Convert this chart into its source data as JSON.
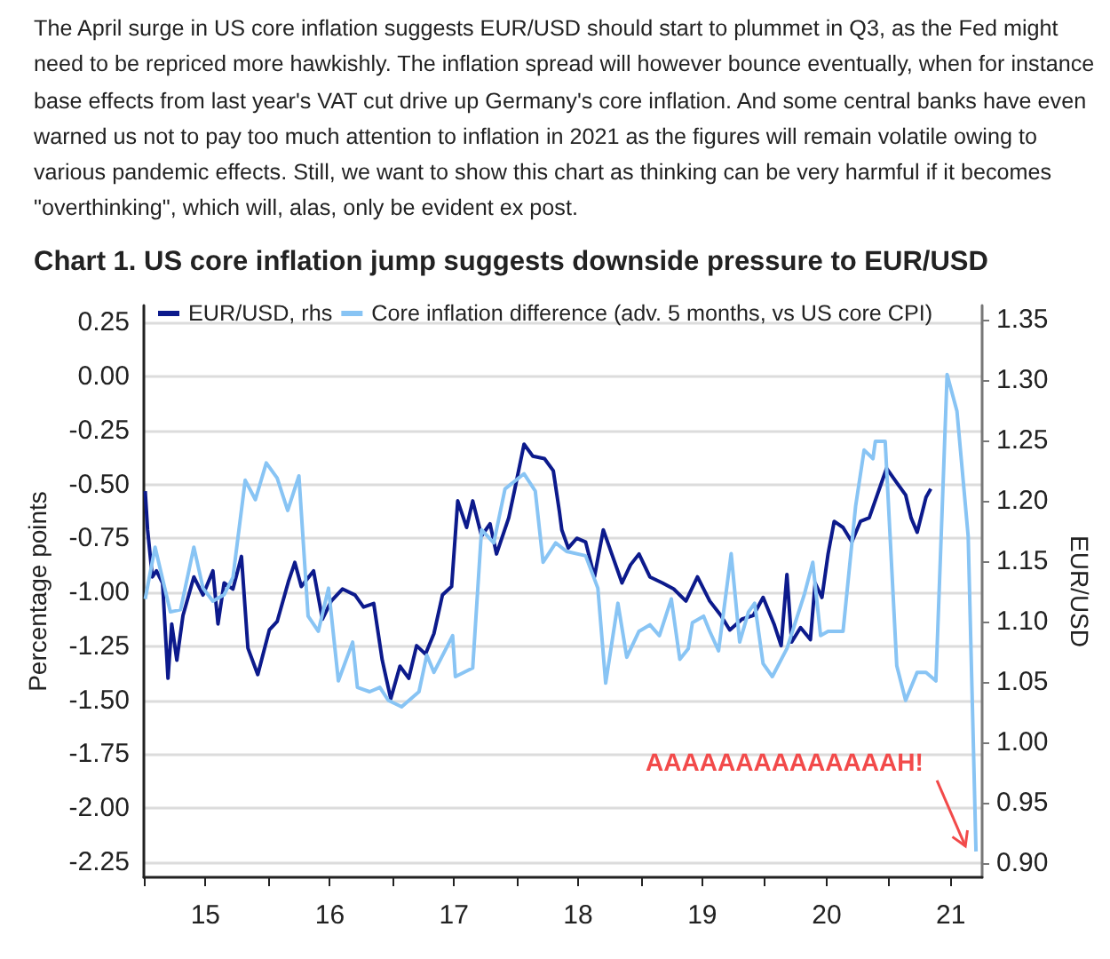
{
  "chart_data": {
    "type": "line",
    "title": "Chart 1. US core inflation jump suggests downside pressure to EUR/USD",
    "annotations": [
      "The April surge in US core inflation suggests EUR/USD should start to plummet in Q3, as the Fed might need to be repriced more hawkishly. The inflation spread will however bounce eventually, when for instance base effects from last year's VAT cut drive up Germany's core inflation. And some central banks have even warned us not to pay too much attention to inflation in 2021 as the figures will remain volatile owing to various pandemic effects. Still, we want to show this chart as thinking can be very harmful if it becomes \"overthinking\", which will, alas, only be evident ex post.",
      {
        "text": "AAAAAAAAAAAAAAH!",
        "x": "2021-09-13",
        "y": -2.2
      }
    ],
    "ylabel": "Percentage points",
    "y2label": "EUR/USD",
    "xlim": [
      "2015-01-01",
      "2021-10-01"
    ],
    "xticks": [
      {
        "value": "2015",
        "label": null
      },
      {
        "value": "2015-07",
        "label": "15"
      },
      {
        "value": "2016",
        "label": null
      },
      {
        "value": "2016-07",
        "label": "16"
      },
      {
        "value": "2017",
        "label": null
      },
      {
        "value": "2017-07",
        "label": "17"
      },
      {
        "value": "2018",
        "label": null
      },
      {
        "value": "2018-07",
        "label": "18"
      },
      {
        "value": "2019",
        "label": null
      },
      {
        "value": "2019-07",
        "label": "19"
      },
      {
        "value": "2020",
        "label": null
      },
      {
        "value": "2020-07",
        "label": "20"
      },
      {
        "value": "2021",
        "label": null
      },
      {
        "value": "2021-07",
        "label": "21"
      }
    ],
    "ylim": [
      -2.32,
      0.33
    ],
    "yticks": [
      {
        "value": 0.25,
        "label": "0.25"
      },
      {
        "value": 0,
        "label": "0.00"
      },
      {
        "value": -0.25,
        "label": "-0.25"
      },
      {
        "value": -0.5,
        "label": "-0.50"
      },
      {
        "value": -0.75,
        "label": "-0.75"
      },
      {
        "value": -1,
        "label": "-1.00"
      },
      {
        "value": -1.25,
        "label": "-1.25"
      },
      {
        "value": -1.5,
        "label": "-1.50"
      },
      {
        "value": -1.75,
        "label": "-1.75"
      },
      {
        "value": -2,
        "label": "-2.00"
      },
      {
        "value": -2.25,
        "label": "-2.25"
      }
    ],
    "y2lim": [
      0.888,
      1.362
    ],
    "y2ticks": [
      {
        "value": 1.35,
        "label": "1.35"
      },
      {
        "value": 1.3,
        "label": "1.30"
      },
      {
        "value": 1.25,
        "label": "1.25"
      },
      {
        "value": 1.2,
        "label": "1.20"
      },
      {
        "value": 1.15,
        "label": "1.15"
      },
      {
        "value": 1.1,
        "label": "1.10"
      },
      {
        "value": 1.05,
        "label": "1.05"
      },
      {
        "value": 1,
        "label": "1.00"
      },
      {
        "value": 0.95,
        "label": "0.95"
      },
      {
        "value": 0.9,
        "label": "0.90"
      }
    ],
    "grid": "y",
    "legend": "top left",
    "marker": "none",
    "line_style": "solid",
    "series": [
      {
        "name": "EUR/USD, rhs",
        "color": "#0c1a8c",
        "axis": "y2",
        "x": [
          "2015-01-05",
          "2015-01-12",
          "2015-01-26",
          "2015-02-07",
          "2015-02-25",
          "2015-03-13",
          "2015-03-24",
          "2015-04-08",
          "2015-04-26",
          "2015-05-28",
          "2015-06-24",
          "2015-07-23",
          "2015-08-07",
          "2015-08-25",
          "2015-09-20",
          "2015-10-15",
          "2015-11-03",
          "2015-12-02",
          "2016-01-05",
          "2016-01-28",
          "2016-03-02",
          "2016-03-20",
          "2016-04-08",
          "2016-05-14",
          "2016-06-09",
          "2016-07-05",
          "2016-08-07",
          "2016-09-13",
          "2016-10-08",
          "2016-11-07",
          "2016-12-02",
          "2016-12-27",
          "2017-01-23",
          "2017-02-18",
          "2017-03-13",
          "2017-04-08",
          "2017-05-03",
          "2017-05-28",
          "2017-06-24",
          "2017-07-12",
          "2017-08-07",
          "2017-08-25",
          "2017-09-20",
          "2017-10-15",
          "2017-11-03",
          "2017-12-09",
          "2017-12-27",
          "2018-01-23",
          "2018-02-18",
          "2018-03-24",
          "2018-04-19",
          "2018-05-07",
          "2018-05-14",
          "2018-06-02",
          "2018-06-27",
          "2018-07-23",
          "2018-08-18",
          "2018-09-13",
          "2018-10-08",
          "2018-11-07",
          "2018-12-02",
          "2018-12-27",
          "2019-01-28",
          "2019-03-06",
          "2019-04-08",
          "2019-05-14",
          "2019-06-17",
          "2019-07-23",
          "2019-08-25",
          "2019-09-20",
          "2019-10-26",
          "2019-11-28",
          "2019-12-27",
          "2020-01-28",
          "2020-02-18",
          "2020-03-06",
          "2020-03-20",
          "2020-04-15",
          "2020-05-14",
          "2020-05-28",
          "2020-06-17",
          "2020-07-05",
          "2020-07-23",
          "2020-08-18",
          "2020-09-13",
          "2020-10-08",
          "2020-11-03",
          "2020-12-09",
          "2020-12-24",
          "2021-01-23",
          "2021-02-18",
          "2021-03-06",
          "2021-03-24",
          "2021-04-19",
          "2021-05-03"
        ],
        "values": [
          1.208,
          1.176,
          1.137,
          1.142,
          1.132,
          1.053,
          1.098,
          1.068,
          1.105,
          1.137,
          1.122,
          1.142,
          1.098,
          1.132,
          1.127,
          1.154,
          1.078,
          1.056,
          1.093,
          1.1,
          1.134,
          1.149,
          1.129,
          1.142,
          1.102,
          1.117,
          1.127,
          1.122,
          1.112,
          1.115,
          1.068,
          1.036,
          1.063,
          1.053,
          1.08,
          1.073,
          1.09,
          1.122,
          1.129,
          1.2,
          1.178,
          1.2,
          1.171,
          1.181,
          1.156,
          1.186,
          1.21,
          1.247,
          1.237,
          1.235,
          1.225,
          1.191,
          1.176,
          1.161,
          1.169,
          1.166,
          1.137,
          1.176,
          1.156,
          1.132,
          1.147,
          1.156,
          1.137,
          1.132,
          1.127,
          1.117,
          1.137,
          1.117,
          1.105,
          1.093,
          1.102,
          1.105,
          1.12,
          1.098,
          1.08,
          1.139,
          1.083,
          1.095,
          1.085,
          1.132,
          1.12,
          1.156,
          1.183,
          1.178,
          1.166,
          1.183,
          1.186,
          1.215,
          1.227,
          1.215,
          1.205,
          1.186,
          1.174,
          1.203,
          1.21
        ]
      },
      {
        "name": "Core inflation difference (adv. 5 months, vs US core CPI)",
        "color": "#88c4f4",
        "x": [
          "2015-01-05",
          "2015-02-03",
          "2015-03-20",
          "2015-04-19",
          "2015-05-28",
          "2015-06-24",
          "2015-07-23",
          "2015-08-25",
          "2015-09-20",
          "2015-10-26",
          "2015-11-25",
          "2015-12-27",
          "2016-01-28",
          "2016-02-28",
          "2016-04-01",
          "2016-04-28",
          "2016-05-28",
          "2016-06-27",
          "2016-07-26",
          "2016-09-06",
          "2016-09-20",
          "2016-10-26",
          "2016-11-25",
          "2016-12-20",
          "2017-01-28",
          "2017-03-20",
          "2017-04-12",
          "2017-05-03",
          "2017-06-27",
          "2017-07-05",
          "2017-08-25",
          "2017-09-20",
          "2017-10-26",
          "2017-11-28",
          "2018-01-23",
          "2018-02-25",
          "2018-03-20",
          "2018-04-26",
          "2018-05-28",
          "2018-07-23",
          "2018-08-28",
          "2018-09-20",
          "2018-10-26",
          "2018-11-21",
          "2018-12-27",
          "2019-01-28",
          "2019-02-25",
          "2019-04-01",
          "2019-04-26",
          "2019-05-21",
          "2019-06-02",
          "2019-07-05",
          "2019-07-23",
          "2019-08-18",
          "2019-09-24",
          "2019-10-19",
          "2019-11-14",
          "2019-12-02",
          "2019-12-27",
          "2020-01-23",
          "2020-03-06",
          "2020-04-26",
          "2020-05-21",
          "2020-06-13",
          "2020-07-05",
          "2020-08-18",
          "2020-09-24",
          "2020-10-19",
          "2020-11-14",
          "2020-11-21",
          "2020-12-20",
          "2021-01-23",
          "2021-02-18",
          "2021-03-24",
          "2021-04-19",
          "2021-05-18",
          "2021-06-20",
          "2021-07-19",
          "2021-08-21",
          "2021-09-13"
        ],
        "values": [
          -1.03,
          -0.79,
          -1.09,
          -1.08,
          -0.79,
          -0.98,
          -1.04,
          -1.01,
          -0.93,
          -0.48,
          -0.57,
          -0.4,
          -0.47,
          -0.62,
          -0.46,
          -1.11,
          -1.18,
          -0.98,
          -1.41,
          -1.23,
          -1.44,
          -1.46,
          -1.44,
          -1.5,
          -1.53,
          -1.46,
          -1.29,
          -1.37,
          -1.2,
          -1.39,
          -1.35,
          -0.71,
          -0.77,
          -0.52,
          -0.45,
          -0.53,
          -0.86,
          -0.77,
          -0.81,
          -0.83,
          -0.98,
          -1.42,
          -1.05,
          -1.3,
          -1.18,
          -1.15,
          -1.2,
          -1.03,
          -1.31,
          -1.26,
          -1.14,
          -1.11,
          -1.18,
          -1.27,
          -0.82,
          -1.23,
          -1.09,
          -1.05,
          -1.33,
          -1.39,
          -1.26,
          -1.01,
          -0.86,
          -1.2,
          -1.18,
          -1.18,
          -0.6,
          -0.34,
          -0.38,
          -0.3,
          -0.3,
          -1.34,
          -1.5,
          -1.37,
          -1.37,
          -1.41,
          0.01,
          -0.16,
          -0.74,
          -2.2
        ]
      }
    ]
  }
}
